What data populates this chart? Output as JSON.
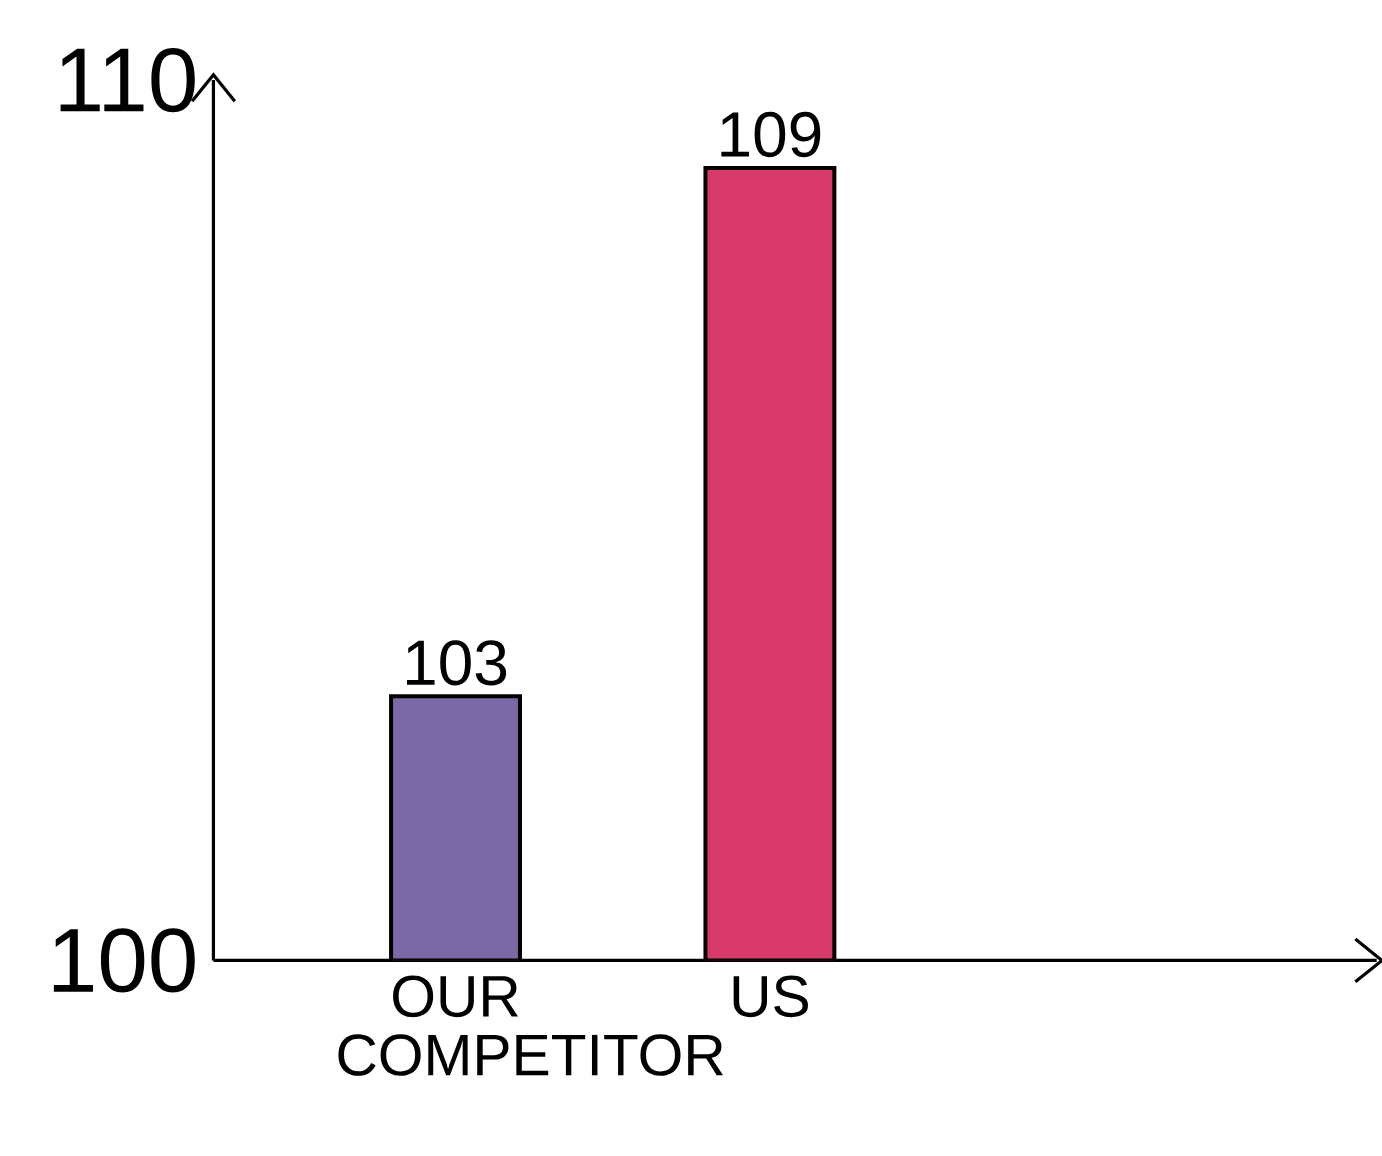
{
  "chart_data": {
    "type": "bar",
    "categories": [
      "OUR COMPETITOR",
      "US"
    ],
    "values": [
      103,
      109
    ],
    "colors": [
      "#7b68a6",
      "#d83a6c"
    ],
    "ylim": [
      100,
      110
    ],
    "yticks": [
      100,
      110
    ],
    "data_labels": true,
    "grid": false
  }
}
